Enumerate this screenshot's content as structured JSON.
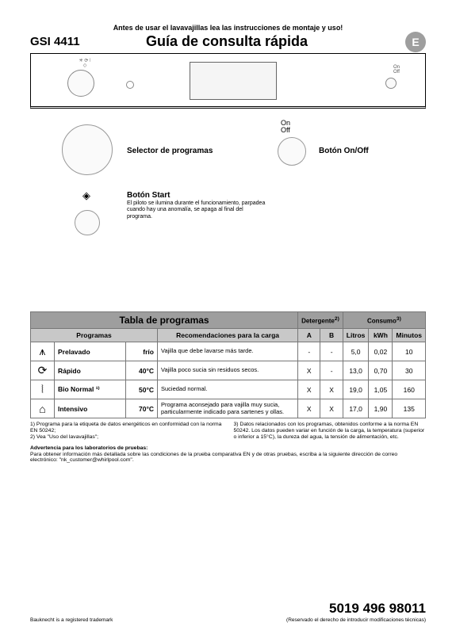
{
  "top_instruction": "Antes de usar el lavavajillas lea las instrucciones de montaje y uso!",
  "model": "GSI 4411",
  "title": "Guía de consulta rápida",
  "badge": "E",
  "brand": "Bauknecht",
  "legend": {
    "selector_label": "Selector de programas",
    "onoff_small": "On\nOff",
    "onoff_label": "Botón On/Off",
    "start_title": "Botón Start",
    "start_desc": "El piloto se ilumina durante el funcionamiento, parpadea cuando hay una anomalía, se apaga al final del programa."
  },
  "table": {
    "title": "Tabla de programas",
    "detergent_hdr": "Detergente",
    "detergent_sup": "2)",
    "consumo_hdr": "Consumo",
    "consumo_sup": "3)",
    "col_prog": "Programas",
    "col_reco": "Recomendaciones para la carga",
    "col_a": "A",
    "col_b": "B",
    "col_litros": "Litros",
    "col_kwh": "kWh",
    "col_min": "Minutos",
    "rows": [
      {
        "icon": "⩚",
        "name": "Prelavado",
        "temp": "frío",
        "reco": "Vajilla que debe lavarse más tarde.",
        "a": "-",
        "b": "-",
        "l": "5,0",
        "k": "0,02",
        "m": "10"
      },
      {
        "icon": "⟳",
        "name": "Rápido",
        "temp": "40°C",
        "reco": "Vajilla poco sucia sin residuos secos.",
        "a": "X",
        "b": "-",
        "l": "13,0",
        "k": "0,70",
        "m": "30"
      },
      {
        "icon": "⦚",
        "name": "Bio Normal ¹⁾",
        "temp": "50°C",
        "reco": "Suciedad normal.",
        "a": "X",
        "b": "X",
        "l": "19,0",
        "k": "1,05",
        "m": "160"
      },
      {
        "icon": "⌂",
        "name": "Intensivo",
        "temp": "70°C",
        "reco": "Programa aconsejado para vajilla muy sucia, particularmente indicado para sartenes y ollas.",
        "a": "X",
        "b": "X",
        "l": "17,0",
        "k": "1,90",
        "m": "135"
      }
    ]
  },
  "notes": {
    "n1": "1)  Programa para la etiqueta de datos energéticos en conformidad con la norma EN 50242;",
    "n2": "2)  Vea \"Uso del lavavajillas\";",
    "n3": "3)  Datos relacionados con los programas, obtenidos conforme a la norma EN 50242. Los datos pueden variar en función de la carga, la temperatura (superior o inferior a 15°C), la dureza del agua, la tensión de alimentación, etc."
  },
  "warning_title": "Advertencia para los laboratorios de pruebas:",
  "warning_body": "Para obtener información más detallada sobre las condiciones de la prueba comparativa EN y de otras pruebas, escriba a la siguiente dirección de correo electrónico: \"nk_customer@whirlpool.com\".",
  "trademark": "Bauknecht is a registered trademark",
  "partno": "5019 496 98011",
  "reserve": "(Reservado el derecho de introducir modificaciones técnicas)"
}
